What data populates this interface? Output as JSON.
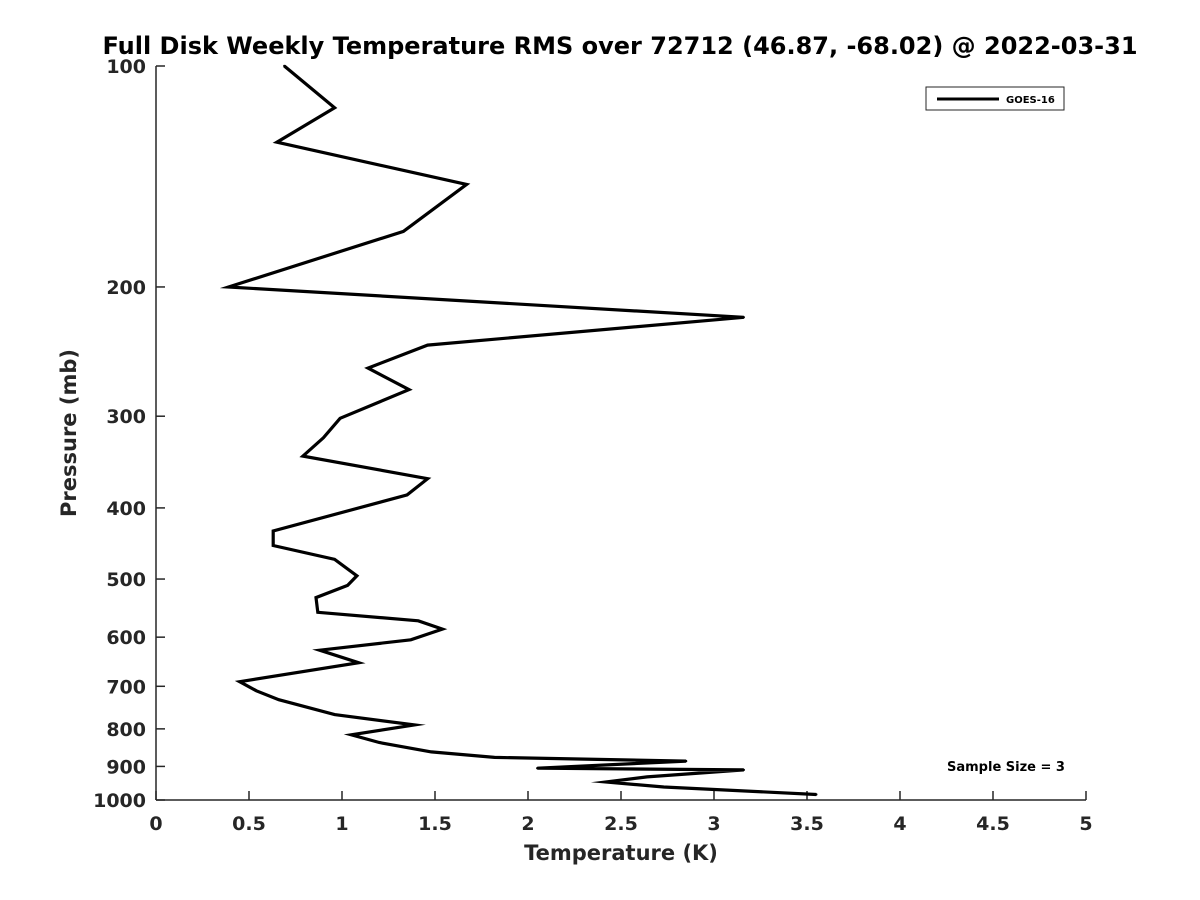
{
  "chart_data": {
    "type": "line",
    "title": "Full Disk Weekly Temperature RMS over 72712 (46.87, -68.02) @ 2022-03-31",
    "xlabel": "Temperature (K)",
    "ylabel": "Pressure (mb)",
    "xlim": [
      0,
      5
    ],
    "ylim": [
      100,
      1000
    ],
    "y_scale": "log",
    "y_reversed": true,
    "xticks": [
      "0",
      "0.5",
      "1",
      "1.5",
      "2",
      "2.5",
      "3",
      "3.5",
      "4",
      "4.5",
      "5"
    ],
    "yticks": [
      "100",
      "200",
      "300",
      "400",
      "500",
      "600",
      "700",
      "800",
      "900",
      "1000"
    ],
    "legend_position": "top-right",
    "grid": false,
    "annotation": "Sample Size = 3",
    "series": [
      {
        "name": "GOES-16",
        "color": "#000000",
        "x": [
          0.69,
          0.96,
          0.65,
          1.67,
          1.33,
          0.39,
          3.16,
          1.46,
          1.14,
          1.36,
          0.99,
          0.9,
          0.79,
          1.46,
          1.35,
          0.63,
          0.63,
          0.96,
          1.08,
          1.03,
          0.86,
          0.87,
          1.41,
          1.54,
          1.37,
          0.88,
          1.09,
          0.45,
          0.54,
          0.66,
          0.96,
          1.39,
          1.05,
          1.2,
          1.48,
          1.82,
          2.85,
          2.05,
          3.16,
          2.64,
          2.42,
          2.73,
          3.55
        ],
        "y": [
          100,
          114,
          127,
          145,
          168,
          200,
          220,
          240,
          258,
          276,
          302,
          321,
          340,
          365,
          384,
          430,
          450,
          470,
          495,
          510,
          530,
          555,
          570,
          585,
          605,
          625,
          650,
          690,
          710,
          730,
          765,
          790,
          815,
          835,
          860,
          875,
          885,
          905,
          910,
          930,
          945,
          960,
          983
        ]
      }
    ]
  }
}
